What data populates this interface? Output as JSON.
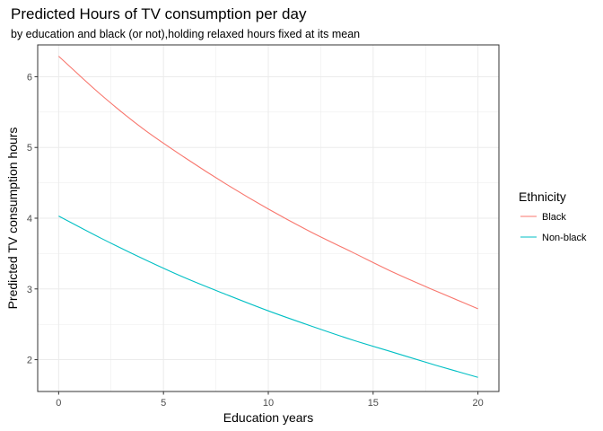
{
  "chart_data": {
    "type": "line",
    "title": "Predicted Hours of TV consumption per day",
    "subtitle": "by education and black (or not),holding relaxed hours fixed at its mean",
    "xlabel": "Education years",
    "ylabel": "Predicted TV consumption hours",
    "xlim": [
      -1,
      21
    ],
    "ylim": [
      1.55,
      6.45
    ],
    "xticks": [
      0,
      5,
      10,
      15,
      20
    ],
    "yticks": [
      2,
      3,
      4,
      5,
      6
    ],
    "grid": true,
    "legend": {
      "title": "Ethnicity",
      "position": "right"
    },
    "series": [
      {
        "name": "Black",
        "color": "#F8766D",
        "x": [
          0,
          2,
          4,
          6,
          8,
          10,
          12,
          14,
          16,
          18,
          20
        ],
        "y": [
          6.29,
          5.75,
          5.27,
          4.86,
          4.48,
          4.13,
          3.81,
          3.52,
          3.23,
          2.97,
          2.72
        ]
      },
      {
        "name": "Non-black",
        "color": "#00BFC4",
        "x": [
          0,
          2,
          4,
          6,
          8,
          10,
          12,
          14,
          16,
          18,
          20
        ],
        "y": [
          4.03,
          3.72,
          3.43,
          3.16,
          2.92,
          2.69,
          2.48,
          2.28,
          2.1,
          1.92,
          1.75
        ]
      }
    ]
  }
}
